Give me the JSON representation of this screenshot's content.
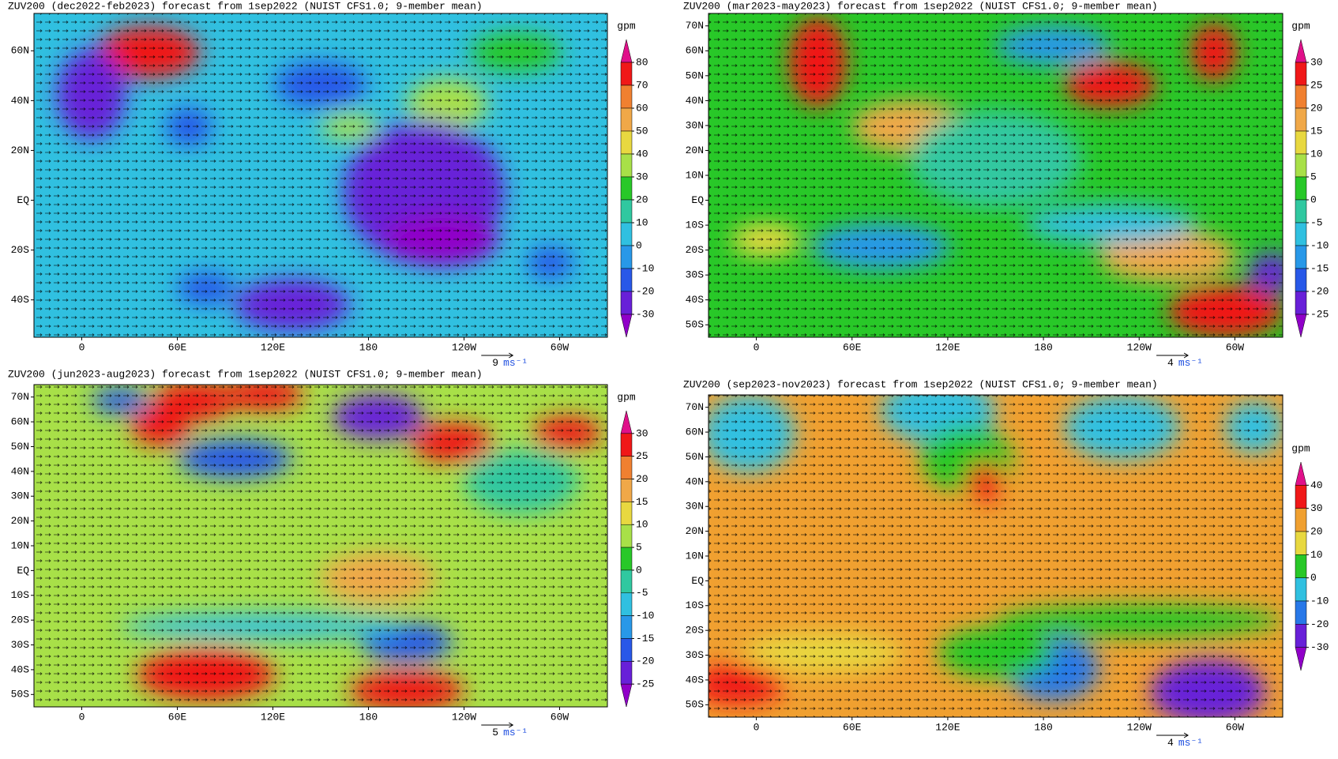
{
  "panels": [
    {
      "title": "ZUV200 (dec2022-feb2023) forecast from 1sep2022 (NUIST CFS1.0; 9-member mean)",
      "unit": "gpm",
      "levels": [
        80,
        70,
        60,
        50,
        40,
        30,
        20,
        10,
        0,
        -10,
        -20,
        -30
      ],
      "colors": [
        "#e0108a",
        "#f01818",
        "#f08030",
        "#f0a848",
        "#e8d840",
        "#a8e048",
        "#28c828",
        "#30c8a0",
        "#30c0e0",
        "#2898e8",
        "#2858e8",
        "#6820d8",
        "#9000c8"
      ],
      "y_labels": [
        "60N",
        "40N",
        "20N",
        "EQ",
        "20S",
        "40S"
      ],
      "x_labels": [
        "0",
        "60E",
        "120E",
        "180",
        "120W",
        "60W"
      ],
      "wind_scale": "9",
      "wind_unit": "ms⁻¹"
    },
    {
      "title": "ZUV200 (mar2023-may2023) forecast from 1sep2022 (NUIST CFS1.0; 9-member mean)",
      "unit": "gpm",
      "levels": [
        30,
        25,
        20,
        15,
        10,
        5,
        0,
        -5,
        -10,
        -15,
        -20,
        -25
      ],
      "colors": [
        "#e0108a",
        "#f01818",
        "#f08030",
        "#f0a848",
        "#e8d840",
        "#a8e048",
        "#28c828",
        "#30c8a0",
        "#30c0e0",
        "#2898e8",
        "#2858e8",
        "#6820d8",
        "#9000c8"
      ],
      "y_labels": [
        "70N",
        "60N",
        "50N",
        "40N",
        "30N",
        "20N",
        "10N",
        "EQ",
        "10S",
        "20S",
        "30S",
        "40S",
        "50S"
      ],
      "x_labels": [
        "0",
        "60E",
        "120E",
        "180",
        "120W",
        "60W"
      ],
      "wind_scale": "4",
      "wind_unit": "ms⁻¹"
    },
    {
      "title": "ZUV200 (jun2023-aug2023) forecast from 1sep2022 (NUIST CFS1.0; 9-member mean)",
      "unit": "gpm",
      "levels": [
        30,
        25,
        20,
        15,
        10,
        5,
        0,
        -5,
        -10,
        -15,
        -20,
        -25
      ],
      "colors": [
        "#e0108a",
        "#f01818",
        "#f08030",
        "#f0a848",
        "#e8d840",
        "#a8e048",
        "#28c828",
        "#30c8a0",
        "#30c0e0",
        "#2898e8",
        "#2858e8",
        "#6820d8",
        "#9000c8"
      ],
      "y_labels": [
        "70N",
        "60N",
        "50N",
        "40N",
        "30N",
        "20N",
        "10N",
        "EQ",
        "10S",
        "20S",
        "30S",
        "40S",
        "50S"
      ],
      "x_labels": [
        "0",
        "60E",
        "120E",
        "180",
        "120W",
        "60W"
      ],
      "wind_scale": "5",
      "wind_unit": "ms⁻¹"
    },
    {
      "title": "ZUV200 (sep2023-nov2023) forecast from 1sep2022 (NUIST CFS1.0; 9-member mean)",
      "unit": "gpm",
      "levels": [
        40,
        30,
        20,
        10,
        0,
        -10,
        -20,
        -30
      ],
      "colors": [
        "#e0108a",
        "#f01818",
        "#f0a030",
        "#e8d840",
        "#28c828",
        "#30c0e0",
        "#2878e8",
        "#6820d8",
        "#9000c8"
      ],
      "y_labels": [
        "70N",
        "60N",
        "50N",
        "40N",
        "30N",
        "20N",
        "10N",
        "EQ",
        "10S",
        "20S",
        "30S",
        "40S",
        "50S"
      ],
      "x_labels": [
        "0",
        "60E",
        "120E",
        "180",
        "120W",
        "60W"
      ],
      "wind_scale": "4",
      "wind_unit": "ms⁻¹"
    }
  ]
}
